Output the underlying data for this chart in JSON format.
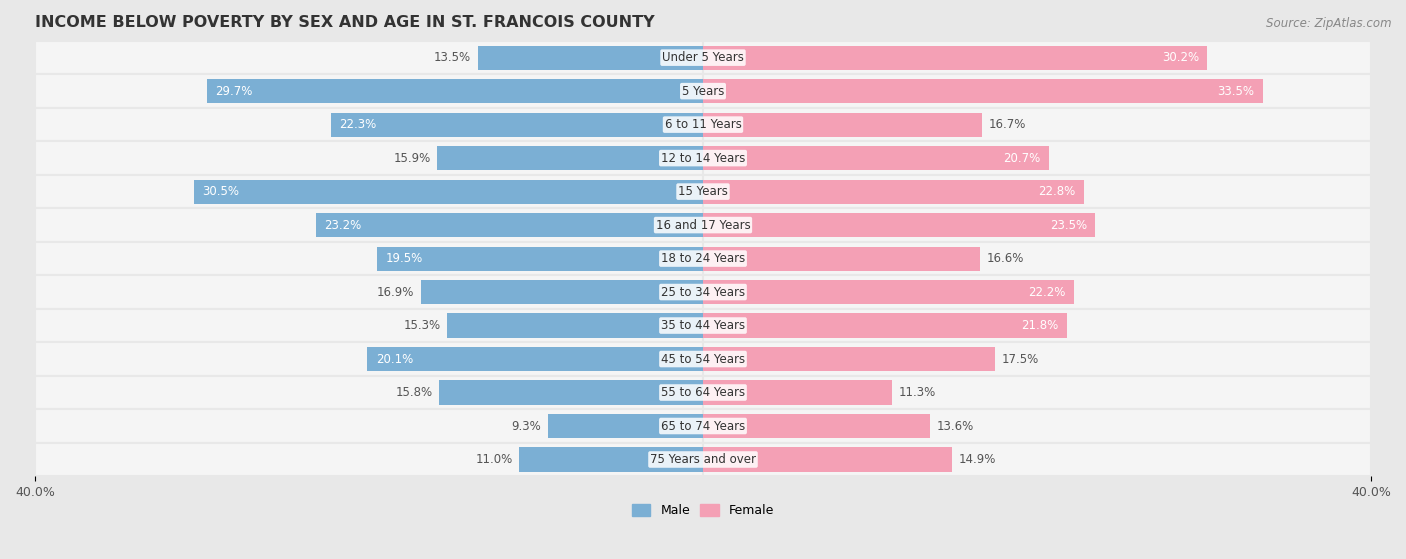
{
  "title": "INCOME BELOW POVERTY BY SEX AND AGE IN ST. FRANCOIS COUNTY",
  "source": "Source: ZipAtlas.com",
  "categories": [
    "Under 5 Years",
    "5 Years",
    "6 to 11 Years",
    "12 to 14 Years",
    "15 Years",
    "16 and 17 Years",
    "18 to 24 Years",
    "25 to 34 Years",
    "35 to 44 Years",
    "45 to 54 Years",
    "55 to 64 Years",
    "65 to 74 Years",
    "75 Years and over"
  ],
  "male_values": [
    13.5,
    29.7,
    22.3,
    15.9,
    30.5,
    23.2,
    19.5,
    16.9,
    15.3,
    20.1,
    15.8,
    9.3,
    11.0
  ],
  "female_values": [
    30.2,
    33.5,
    16.7,
    20.7,
    22.8,
    23.5,
    16.6,
    22.2,
    21.8,
    17.5,
    11.3,
    13.6,
    14.9
  ],
  "male_color": "#7bafd4",
  "female_color": "#f4a0b5",
  "male_color_dark": "#5a9ac5",
  "female_color_dark": "#e8799a",
  "bar_height": 0.72,
  "xlim": 40.0,
  "background_color": "#e8e8e8",
  "row_bg_color": "#f5f5f5",
  "row_alt_color": "#ebebeb",
  "title_fontsize": 11.5,
  "label_fontsize": 8.5,
  "value_fontsize": 8.5,
  "tick_fontsize": 9,
  "source_fontsize": 8.5,
  "inside_threshold": 18.0
}
